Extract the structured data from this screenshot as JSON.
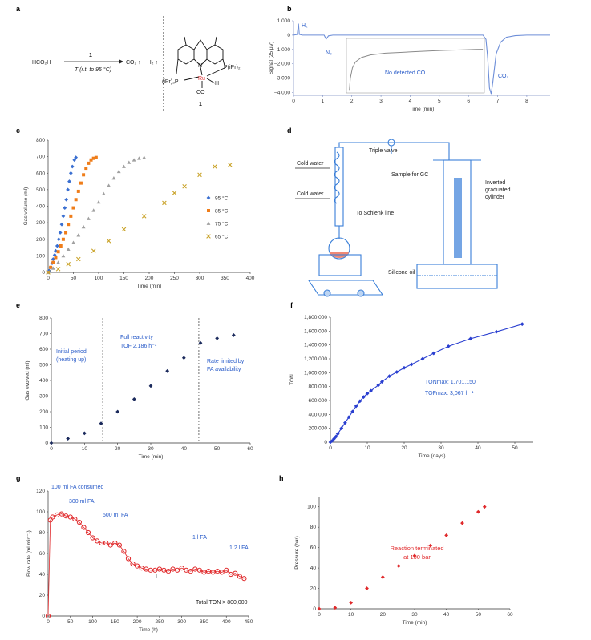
{
  "panels": {
    "a": {
      "label": "a",
      "reactant": "HCO₂H",
      "catalyst_label": "1",
      "conditions": "T (r.t. to 95 °C)",
      "products": "CO₂ ↑ + H₂ ↑",
      "complex_label": "1",
      "complex_atoms": {
        "n": "N",
        "ru": "Ru",
        "h": "H",
        "co": "CO",
        "p_right": "P(iPr)₂",
        "p_left": "(iPr)₂P"
      }
    },
    "b": {
      "label": "b",
      "annotations": {
        "h2": "H₂",
        "n2": "N₂",
        "co2": "CO₂",
        "no_co": "No detected CO"
      }
    },
    "d": {
      "label": "d",
      "labels": {
        "cold_water_1": "Cold water",
        "cold_water_2": "Cold water",
        "triple_valve": "Triple valve",
        "sample_gc": "Sample for GC",
        "schlenk": "To Schlenk line",
        "inverted": "Inverted",
        "graduated": "graduated",
        "cylinder": "cylinder",
        "silicone": "Silicone oil"
      }
    },
    "e": {
      "annotations": {
        "initial_1": "Initial period",
        "initial_2": "(heating up)",
        "full_1": "Full reactivity",
        "full_2": "TOF 2,186 h⁻¹",
        "rate_1": "Rate limited by",
        "rate_2": "FA availability"
      }
    },
    "f": {
      "annotations": {
        "ton_max": "TONmax: 1,701,150",
        "tof_max": "TOFmax: 3,067 h⁻¹"
      }
    },
    "g": {
      "annotations": {
        "a100": "100 ml FA consumed",
        "a300": "300 ml FA",
        "a500": "500 ml FA",
        "a1l": "1 l FA",
        "a12l": "1.2 l FA",
        "total": "Total TON > 800,000",
        "mark": "I"
      }
    },
    "h": {
      "annotations": {
        "line1": "Reaction terminated",
        "line2": "at 100 bar"
      }
    }
  },
  "chart_data": [
    {
      "id": "b",
      "type": "line",
      "title": "",
      "xlabel": "Time (min)",
      "ylabel": "Signal (25 μV)",
      "xlim": [
        0,
        8.8
      ],
      "ylim": [
        -4200,
        1000
      ],
      "xticks": [
        0,
        1,
        2,
        3,
        4,
        5,
        6,
        7,
        8
      ],
      "yticks": [
        1000,
        0,
        -1000,
        -2000,
        -3000,
        -4000
      ],
      "ytick_labels": [
        "1,000",
        "0",
        "–1,000",
        "–2,000",
        "–3,000",
        "–4,000"
      ],
      "main_series": [
        [
          0,
          0
        ],
        [
          0.13,
          50
        ],
        [
          0.17,
          800
        ],
        [
          0.2,
          50
        ],
        [
          0.3,
          0
        ],
        [
          1.05,
          0
        ],
        [
          1.12,
          -280
        ],
        [
          1.2,
          -50
        ],
        [
          1.35,
          0
        ],
        [
          6.5,
          0
        ],
        [
          6.6,
          -300
        ],
        [
          6.66,
          -1600
        ],
        [
          6.72,
          -3700
        ],
        [
          6.78,
          -4100
        ],
        [
          6.84,
          -3200
        ],
        [
          6.95,
          -1300
        ],
        [
          7.1,
          -500
        ],
        [
          7.3,
          -150
        ],
        [
          7.6,
          -40
        ],
        [
          8.0,
          0
        ],
        [
          8.8,
          0
        ]
      ],
      "inset": {
        "xlim": [
          1.7,
          6.3
        ],
        "ylim": [
          -4200,
          -500
        ],
        "series": [
          [
            1.8,
            -4000
          ],
          [
            1.83,
            -3200
          ],
          [
            1.9,
            -2500
          ],
          [
            2.0,
            -2100
          ],
          [
            2.2,
            -1800
          ],
          [
            2.5,
            -1620
          ],
          [
            3.0,
            -1500
          ],
          [
            3.5,
            -1450
          ],
          [
            4.0,
            -1400
          ],
          [
            4.5,
            -1350
          ],
          [
            5.0,
            -1310
          ],
          [
            5.5,
            -1280
          ],
          [
            6.0,
            -1250
          ],
          [
            6.25,
            -1240
          ]
        ]
      }
    },
    {
      "id": "c",
      "type": "scatter",
      "xlabel": "Time (min)",
      "ylabel": "Gas volume (ml)",
      "xlim": [
        0,
        400
      ],
      "ylim": [
        0,
        800
      ],
      "xticks": [
        0,
        50,
        100,
        150,
        200,
        250,
        300,
        350,
        400
      ],
      "yticks": [
        0,
        100,
        200,
        300,
        400,
        500,
        600,
        700,
        800
      ],
      "series": [
        {
          "name": "95 °C",
          "marker": "diamond",
          "color": "#3a6fd1",
          "x": [
            0,
            2,
            5,
            8,
            10,
            13,
            15,
            18,
            21,
            24,
            27,
            30,
            33,
            36,
            39,
            42,
            45,
            48,
            52,
            55
          ],
          "y": [
            0,
            10,
            30,
            55,
            80,
            105,
            130,
            160,
            200,
            240,
            290,
            340,
            390,
            440,
            500,
            550,
            600,
            640,
            680,
            695
          ]
        },
        {
          "name": "85 °C",
          "marker": "square",
          "color": "#ef7d1a",
          "x": [
            0,
            5,
            10,
            15,
            20,
            25,
            30,
            35,
            40,
            45,
            50,
            55,
            60,
            65,
            70,
            75,
            80,
            85,
            90,
            95
          ],
          "y": [
            0,
            30,
            60,
            90,
            125,
            160,
            200,
            240,
            290,
            340,
            390,
            440,
            490,
            540,
            590,
            630,
            660,
            680,
            690,
            695
          ]
        },
        {
          "name": "75 °C",
          "marker": "triangle",
          "color": "#a0a0a0",
          "x": [
            0,
            10,
            20,
            30,
            40,
            50,
            60,
            70,
            80,
            90,
            100,
            110,
            120,
            130,
            140,
            150,
            160,
            170,
            180,
            190
          ],
          "y": [
            0,
            25,
            60,
            100,
            140,
            180,
            225,
            275,
            325,
            375,
            425,
            475,
            525,
            570,
            610,
            640,
            665,
            680,
            690,
            695
          ]
        },
        {
          "name": "65 °C",
          "marker": "x",
          "color": "#c9a227",
          "x": [
            0,
            20,
            40,
            60,
            90,
            120,
            150,
            190,
            230,
            250,
            270,
            300,
            330,
            360
          ],
          "y": [
            0,
            20,
            50,
            80,
            130,
            190,
            260,
            340,
            420,
            480,
            520,
            590,
            640,
            650
          ]
        }
      ]
    },
    {
      "id": "e",
      "type": "scatter",
      "xlabel": "Time (min)",
      "ylabel": "Gas evolved (ml)",
      "xlim": [
        0,
        60
      ],
      "ylim": [
        0,
        800
      ],
      "xticks": [
        0,
        10,
        20,
        30,
        40,
        50,
        60
      ],
      "yticks": [
        0,
        100,
        200,
        300,
        400,
        500,
        600,
        700,
        800
      ],
      "vlines": [
        15.5,
        44.5
      ],
      "x": [
        0,
        5,
        10,
        15,
        20,
        25,
        30,
        35,
        40,
        45,
        50,
        55
      ],
      "y": [
        0,
        28,
        62,
        125,
        200,
        280,
        365,
        460,
        545,
        640,
        670,
        690
      ]
    },
    {
      "id": "f",
      "type": "line",
      "xlabel": "Time (days)",
      "ylabel": "TON",
      "xlim": [
        0,
        55
      ],
      "ylim": [
        0,
        1800000
      ],
      "xticks": [
        0,
        10,
        20,
        30,
        40,
        50
      ],
      "yticks": [
        0,
        200000,
        400000,
        600000,
        800000,
        1000000,
        1200000,
        1400000,
        1600000,
        1800000
      ],
      "ytick_labels": [
        "0",
        "200,000",
        "400,000",
        "600,000",
        "800,000",
        "1,000,000",
        "1,200,000",
        "1,400,000",
        "1,600,000",
        "1,800,000"
      ],
      "x": [
        0,
        0.5,
        1,
        1.5,
        2,
        3,
        4,
        5,
        6,
        7,
        8,
        9,
        10,
        11,
        13,
        14,
        16,
        18,
        20,
        22,
        25,
        28,
        32,
        38,
        45,
        52
      ],
      "y": [
        0,
        20000,
        50000,
        80000,
        120000,
        200000,
        280000,
        360000,
        440000,
        520000,
        590000,
        650000,
        700000,
        740000,
        820000,
        870000,
        950000,
        1010000,
        1070000,
        1120000,
        1200000,
        1280000,
        1380000,
        1490000,
        1590000,
        1700000
      ]
    },
    {
      "id": "g",
      "type": "line",
      "xlabel": "Time (h)",
      "ylabel": "Flow rate (ml min⁻¹)",
      "xlim": [
        0,
        450
      ],
      "ylim": [
        0,
        120
      ],
      "xticks": [
        0,
        50,
        100,
        150,
        200,
        250,
        300,
        350,
        400,
        450
      ],
      "yticks": [
        0,
        20,
        40,
        60,
        80,
        100,
        120
      ],
      "x": [
        0,
        5,
        10,
        20,
        30,
        40,
        50,
        60,
        70,
        80,
        90,
        100,
        110,
        120,
        130,
        140,
        150,
        160,
        170,
        180,
        190,
        200,
        210,
        220,
        230,
        240,
        250,
        260,
        270,
        280,
        290,
        300,
        310,
        320,
        330,
        340,
        350,
        360,
        370,
        380,
        390,
        400,
        410,
        420,
        430,
        440
      ],
      "y": [
        0,
        92,
        95,
        97,
        98,
        96,
        95,
        93,
        90,
        85,
        80,
        75,
        72,
        70,
        70,
        68,
        70,
        68,
        62,
        55,
        50,
        48,
        46,
        45,
        44,
        44,
        45,
        44,
        43,
        45,
        44,
        46,
        44,
        43,
        45,
        44,
        42,
        43,
        42,
        43,
        42,
        44,
        40,
        41,
        38,
        36
      ]
    },
    {
      "id": "h",
      "type": "scatter",
      "xlabel": "Time (min)",
      "ylabel": "Pressure (bar)",
      "xlim": [
        0,
        60
      ],
      "ylim": [
        0,
        110
      ],
      "xticks": [
        0,
        10,
        20,
        30,
        40,
        50,
        60
      ],
      "yticks": [
        0,
        20,
        40,
        60,
        80,
        100
      ],
      "x": [
        0,
        5,
        10,
        15,
        20,
        25,
        30,
        35,
        40,
        45,
        50,
        52
      ],
      "y": [
        0,
        1,
        6,
        20,
        31,
        42,
        52,
        62,
        72,
        84,
        95,
        100
      ]
    }
  ]
}
